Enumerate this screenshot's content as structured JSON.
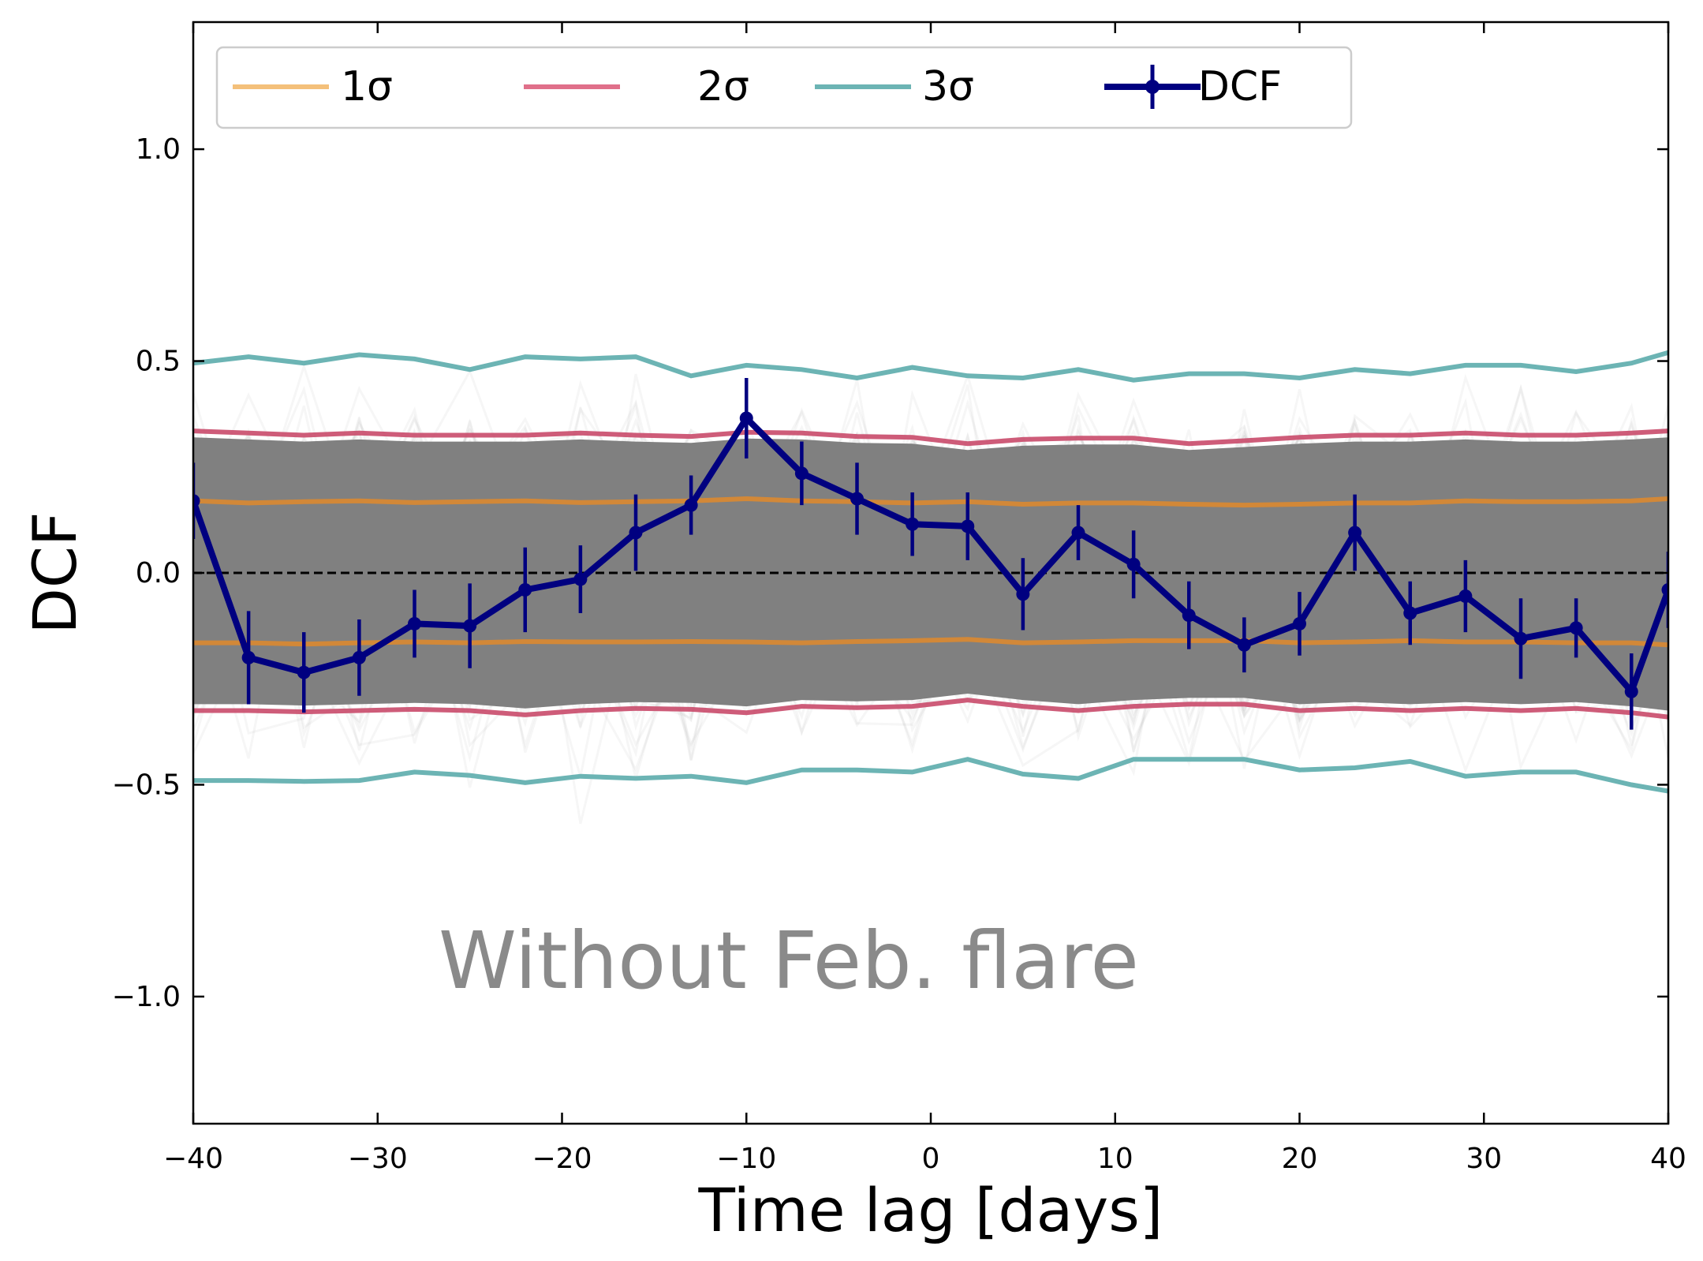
{
  "chart_data": {
    "type": "line",
    "xlabel": "Time lag [days]",
    "ylabel": "DCF",
    "xlim": [
      -40,
      40
    ],
    "ylim": [
      -1.3,
      1.3
    ],
    "xticks": [
      -40,
      -30,
      -20,
      -10,
      0,
      10,
      20,
      30,
      40
    ],
    "xtick_labels": [
      "−40",
      "−30",
      "−20",
      "−10",
      "0",
      "10",
      "20",
      "30",
      "40"
    ],
    "yticks": [
      -1.0,
      -0.5,
      0.0,
      0.5,
      1.0
    ],
    "ytick_labels": [
      "−1.0",
      "−0.5",
      "0.0",
      "0.5",
      "1.0"
    ],
    "annotation": "Without Feb. flare",
    "legend_placement": "top",
    "legend": [
      {
        "label": "1σ",
        "color": "#f4c07a"
      },
      {
        "label": "2σ",
        "color": "#e0708a"
      },
      {
        "label": "3σ",
        "color": "#6cb4b4"
      },
      {
        "label": "DCF",
        "color": "#000080"
      }
    ],
    "x": [
      -40,
      -37,
      -34,
      -31,
      -28,
      -25,
      -22,
      -19,
      -16,
      -13,
      -10,
      -7,
      -4,
      -1,
      2,
      5,
      8,
      11,
      14,
      17,
      20,
      23,
      26,
      29,
      32,
      35,
      38,
      40
    ],
    "series": [
      {
        "name": "DCF",
        "color": "#000080",
        "values": [
          0.17,
          -0.2,
          -0.235,
          -0.2,
          -0.12,
          -0.125,
          -0.04,
          -0.015,
          0.095,
          0.16,
          0.365,
          0.235,
          0.175,
          0.115,
          0.11,
          -0.05,
          0.095,
          0.02,
          -0.1,
          -0.17,
          -0.12,
          0.095,
          -0.095,
          -0.055,
          -0.155,
          -0.13,
          -0.28,
          -0.04
        ],
        "errors": [
          0.09,
          0.11,
          0.095,
          0.09,
          0.08,
          0.1,
          0.1,
          0.08,
          0.09,
          0.07,
          0.095,
          0.075,
          0.085,
          0.075,
          0.08,
          0.085,
          0.065,
          0.08,
          0.08,
          0.065,
          0.075,
          0.09,
          0.075,
          0.085,
          0.095,
          0.07,
          0.09,
          0.09
        ]
      },
      {
        "name": "1σ upper",
        "color": "#e08a2c",
        "values": [
          0.17,
          0.165,
          0.168,
          0.17,
          0.166,
          0.168,
          0.17,
          0.166,
          0.168,
          0.17,
          0.175,
          0.17,
          0.168,
          0.165,
          0.168,
          0.162,
          0.165,
          0.165,
          0.162,
          0.16,
          0.162,
          0.165,
          0.165,
          0.17,
          0.168,
          0.168,
          0.17,
          0.175
        ]
      },
      {
        "name": "1σ lower",
        "color": "#e08a2c",
        "values": [
          -0.165,
          -0.165,
          -0.168,
          -0.165,
          -0.163,
          -0.165,
          -0.162,
          -0.163,
          -0.163,
          -0.162,
          -0.163,
          -0.165,
          -0.162,
          -0.16,
          -0.157,
          -0.165,
          -0.163,
          -0.16,
          -0.16,
          -0.16,
          -0.165,
          -0.163,
          -0.16,
          -0.163,
          -0.163,
          -0.165,
          -0.165,
          -0.17
        ]
      },
      {
        "name": "2σ upper",
        "color": "#c94a6a",
        "values": [
          0.335,
          0.33,
          0.325,
          0.33,
          0.325,
          0.325,
          0.325,
          0.33,
          0.325,
          0.322,
          0.332,
          0.33,
          0.322,
          0.32,
          0.305,
          0.315,
          0.318,
          0.318,
          0.305,
          0.312,
          0.32,
          0.325,
          0.325,
          0.33,
          0.325,
          0.325,
          0.33,
          0.335
        ]
      },
      {
        "name": "2σ lower",
        "color": "#c94a6a",
        "values": [
          -0.325,
          -0.325,
          -0.328,
          -0.325,
          -0.322,
          -0.325,
          -0.335,
          -0.325,
          -0.32,
          -0.322,
          -0.33,
          -0.315,
          -0.318,
          -0.315,
          -0.3,
          -0.315,
          -0.325,
          -0.315,
          -0.31,
          -0.31,
          -0.325,
          -0.32,
          -0.325,
          -0.32,
          -0.325,
          -0.32,
          -0.33,
          -0.34
        ]
      },
      {
        "name": "3σ upper",
        "color": "#6cb4b4",
        "values": [
          0.495,
          0.51,
          0.495,
          0.515,
          0.505,
          0.48,
          0.51,
          0.505,
          0.51,
          0.465,
          0.49,
          0.48,
          0.46,
          0.485,
          0.465,
          0.46,
          0.48,
          0.455,
          0.47,
          0.47,
          0.46,
          0.48,
          0.47,
          0.49,
          0.49,
          0.475,
          0.495,
          0.52
        ]
      },
      {
        "name": "3σ lower",
        "color": "#6cb4b4",
        "values": [
          -0.49,
          -0.49,
          -0.492,
          -0.49,
          -0.47,
          -0.478,
          -0.495,
          -0.48,
          -0.485,
          -0.48,
          -0.495,
          -0.465,
          -0.465,
          -0.47,
          -0.44,
          -0.475,
          -0.485,
          -0.44,
          -0.44,
          -0.44,
          -0.465,
          -0.46,
          -0.445,
          -0.48,
          -0.47,
          -0.47,
          -0.5,
          -0.515
        ]
      }
    ],
    "grid": false
  }
}
